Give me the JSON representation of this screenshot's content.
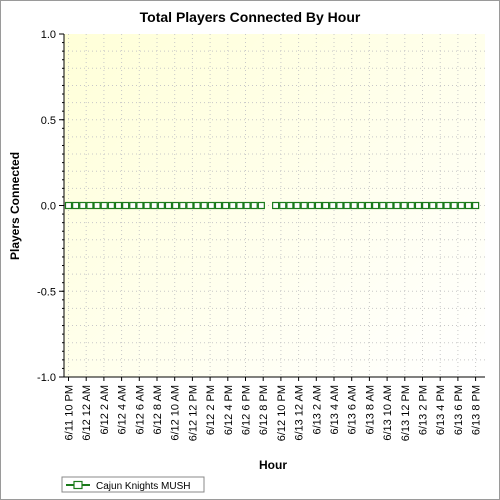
{
  "chart_data": {
    "type": "line",
    "title": "Total Players Connected By Hour",
    "xlabel": "Hour",
    "ylabel": "Players Connected",
    "ylim": [
      -1.0,
      1.0
    ],
    "yticks": [
      1.0,
      0.5,
      0.0,
      -0.5,
      -1.0
    ],
    "ytick_labels": [
      "1.0",
      "0.5",
      "0.0",
      "-0.5",
      "-1.0"
    ],
    "grid": true,
    "legend_position": "bottom-left",
    "x_tick_labels": [
      "6/11 10 PM",
      "6/12 12 AM",
      "6/12 2 AM",
      "6/12 4 AM",
      "6/12 6 AM",
      "6/12 8 AM",
      "6/12 10 AM",
      "6/12 12 PM",
      "6/12 2 PM",
      "6/12 4 PM",
      "6/12 6 PM",
      "6/12 8 PM",
      "6/12 10 PM",
      "6/13 12 AM",
      "6/13 2 AM",
      "6/13 4 AM",
      "6/13 6 AM",
      "6/13 8 AM",
      "6/13 10 AM",
      "6/13 12 PM",
      "6/13 2 PM",
      "6/13 4 PM",
      "6/13 6 PM",
      "6/13 8 PM"
    ],
    "series": [
      {
        "name": "Cajun Knights MUSH",
        "color": "#1a7a1a",
        "marker_fill": "#ffffff",
        "values": [
          0,
          0,
          0,
          0,
          0,
          0,
          0,
          0,
          0,
          0,
          0,
          0,
          0,
          0,
          0,
          0,
          0,
          0,
          0,
          0,
          0,
          0,
          0,
          0,
          0,
          0,
          0,
          0,
          null,
          0,
          0,
          0,
          0,
          0,
          0,
          0,
          0,
          0,
          0,
          0,
          0,
          0,
          0,
          0,
          0,
          0,
          0,
          0,
          0,
          0,
          0,
          0,
          0,
          0,
          0,
          0,
          0,
          0
        ]
      }
    ]
  },
  "colors": {
    "plot_bg_top_left": "#ffffd8",
    "plot_bg_bottom_right": "#ffffff",
    "grid": "#c8c8c8"
  }
}
